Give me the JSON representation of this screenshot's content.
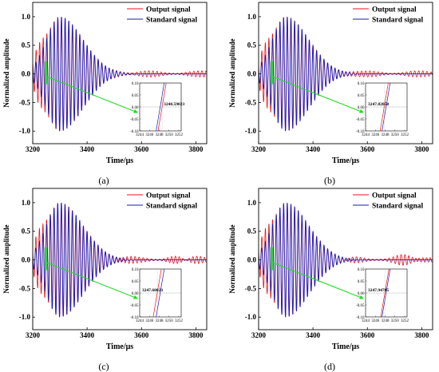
{
  "chart_data": [
    {
      "type": "line",
      "panel_label": "(a)",
      "xlabel": "Time/μs",
      "ylabel": "Normalized amplitude",
      "xlim": [
        3200,
        3840
      ],
      "ylim": [
        -1.22,
        1.25
      ],
      "x_ticks": [
        "3200",
        "3400",
        "3600",
        "3800"
      ],
      "y_ticks": [
        "-1.0",
        "-0.5",
        "0.0",
        "0.5",
        "1.0"
      ],
      "series": [
        {
          "name": "Output signal",
          "color": "#e8141b"
        },
        {
          "name": "Standard signal",
          "color": "#1a1ab4"
        }
      ],
      "legend_position": "top-right",
      "highlight_region": [
        3244,
        3252
      ],
      "inset": {
        "xlim": [
          3244,
          3252.5
        ],
        "ylim": [
          -0.1,
          0.1
        ],
        "x_ticks": [
          "3244",
          "3246",
          "3248",
          "3250",
          "3252"
        ],
        "y_ticks": [
          "0.10",
          "0.05",
          "0.00",
          "-0.05",
          "-0.10"
        ],
        "annotation": "3248.59023",
        "standard_crossing": 3248.2,
        "output_crossing": 3248.59023
      }
    },
    {
      "type": "line",
      "panel_label": "(b)",
      "xlabel": "Time/μs",
      "ylabel": "Normalized amplitude",
      "xlim": [
        3200,
        3840
      ],
      "ylim": [
        -1.22,
        1.25
      ],
      "x_ticks": [
        "3200",
        "3400",
        "3600",
        "3800"
      ],
      "y_ticks": [
        "-1.0",
        "-0.5",
        "0.0",
        "0.5",
        "1.0"
      ],
      "series": [
        {
          "name": "Output signal",
          "color": "#e8141b"
        },
        {
          "name": "Standard signal",
          "color": "#1a1ab4"
        }
      ],
      "legend_position": "top-right",
      "highlight_region": [
        3244,
        3252
      ],
      "inset": {
        "xlim": [
          3244,
          3252.5
        ],
        "ylim": [
          -0.1,
          0.1
        ],
        "x_ticks": [
          "3244",
          "3246",
          "3248",
          "3250",
          "3252"
        ],
        "y_ticks": [
          "0.10",
          "0.05",
          "0.00",
          "-0.05",
          "-0.10"
        ],
        "annotation": "3247.82058",
        "standard_crossing": 3248.2,
        "output_crossing": 3247.82058
      }
    },
    {
      "type": "line",
      "panel_label": "(c)",
      "xlabel": "Time/μs",
      "ylabel": "Normalized amplitude",
      "xlim": [
        3200,
        3840
      ],
      "ylim": [
        -1.22,
        1.25
      ],
      "x_ticks": [
        "3200",
        "3400",
        "3600",
        "3800"
      ],
      "y_ticks": [
        "-1.0",
        "-0.5",
        "0.0",
        "0.5",
        "1.0"
      ],
      "series": [
        {
          "name": "Output signal",
          "color": "#e8141b"
        },
        {
          "name": "Standard signal",
          "color": "#1a1ab4"
        }
      ],
      "legend_position": "top-right",
      "highlight_region": [
        3244,
        3252
      ],
      "inset": {
        "xlim": [
          3244,
          3252.5
        ],
        "ylim": [
          -0.1,
          0.1
        ],
        "x_ticks": [
          "3244",
          "3246",
          "3248",
          "3250",
          "3252"
        ],
        "y_ticks": [
          "0.10",
          "0.05",
          "0.00",
          "-0.05",
          "-0.10"
        ],
        "annotation": "3247.60023",
        "standard_crossing": 3248.2,
        "output_crossing": 3247.60023
      }
    },
    {
      "type": "line",
      "panel_label": "(d)",
      "xlabel": "Time/μs",
      "ylabel": "Normalized amplitude",
      "xlim": [
        3200,
        3840
      ],
      "ylim": [
        -1.22,
        1.25
      ],
      "x_ticks": [
        "3200",
        "3400",
        "3600",
        "3800"
      ],
      "y_ticks": [
        "-1.0",
        "-0.5",
        "0.0",
        "0.5",
        "1.0"
      ],
      "series": [
        {
          "name": "Output signal",
          "color": "#e8141b"
        },
        {
          "name": "Standard signal",
          "color": "#1a1ab4"
        }
      ],
      "legend_position": "top-right",
      "highlight_region": [
        3244,
        3252
      ],
      "inset": {
        "xlim": [
          3244,
          3252.5
        ],
        "ylim": [
          -0.1,
          0.1
        ],
        "x_ticks": [
          "3244",
          "3246",
          "3248",
          "3250",
          "3252"
        ],
        "y_ticks": [
          "0.10",
          "0.05",
          "0.00",
          "-0.05",
          "-0.10"
        ],
        "annotation": "3247.94785",
        "standard_crossing": 3248.2,
        "output_crossing": 3247.94785
      }
    }
  ]
}
